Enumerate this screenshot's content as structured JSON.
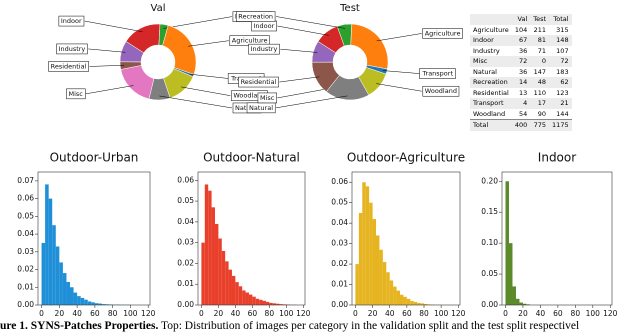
{
  "chart_data": [
    {
      "type": "pie",
      "title": "Val",
      "categories": [
        "Indoor",
        "Recreation",
        "Agriculture",
        "Transport",
        "Woodland",
        "Natural",
        "Misc",
        "Residential",
        "Industry"
      ],
      "values": [
        67,
        14,
        104,
        4,
        54,
        36,
        72,
        13,
        36
      ],
      "colors": [
        "#d62728",
        "#2ca02c",
        "#ff7f0e",
        "#1f77b4",
        "#bcbd22",
        "#7f7f7f",
        "#e377c2",
        "#8c564b",
        "#9467bd"
      ]
    },
    {
      "type": "pie",
      "title": "Test",
      "categories": [
        "Indoor",
        "Recreation",
        "Agriculture",
        "Transport",
        "Woodland",
        "Natural",
        "Misc",
        "Residential",
        "Industry"
      ],
      "values": [
        81,
        48,
        211,
        17,
        90,
        147,
        0,
        110,
        71
      ],
      "colors": [
        "#d62728",
        "#2ca02c",
        "#ff7f0e",
        "#1f77b4",
        "#bcbd22",
        "#7f7f7f",
        "#e377c2",
        "#8c564b",
        "#9467bd"
      ]
    },
    {
      "type": "histogram",
      "title": "Outdoor-Urban",
      "color": "#1f8fd8",
      "bins": [
        0,
        4,
        8,
        12,
        16,
        20,
        24,
        28,
        32,
        36,
        40,
        44,
        48,
        52,
        56,
        60,
        64,
        68,
        72,
        76,
        80,
        84,
        88,
        92,
        96,
        100,
        104,
        108,
        112,
        116,
        120
      ],
      "values": [
        0.035,
        0.068,
        0.06,
        0.045,
        0.033,
        0.024,
        0.018,
        0.013,
        0.01,
        0.007,
        0.005,
        0.004,
        0.003,
        0.002,
        0.0015,
        0.001,
        0.0008,
        0.0005,
        0.0004,
        0.0003,
        0.0002,
        0.0002,
        0.0001,
        0.0001,
        0.0001,
        0,
        0,
        0,
        0,
        0
      ],
      "xlim": [
        -4,
        122
      ],
      "xticks": [
        0,
        20,
        40,
        60,
        80,
        100,
        120
      ],
      "ylim": [
        0,
        0.075
      ],
      "yticks": [
        {
          "value": 0,
          "label": "0.00"
        },
        0.01,
        0.02,
        0.03,
        0.04,
        0.05,
        0.06,
        0.07
      ]
    },
    {
      "type": "histogram",
      "title": "Outdoor-Natural",
      "color": "#e8402a",
      "bins": [
        0,
        4,
        8,
        12,
        16,
        20,
        24,
        28,
        32,
        36,
        40,
        44,
        48,
        52,
        56,
        60,
        64,
        68,
        72,
        76,
        80,
        84,
        88,
        92,
        96,
        100,
        104,
        108,
        112,
        116,
        120
      ],
      "values": [
        0.03,
        0.058,
        0.055,
        0.047,
        0.039,
        0.032,
        0.026,
        0.021,
        0.017,
        0.014,
        0.011,
        0.009,
        0.007,
        0.006,
        0.005,
        0.004,
        0.003,
        0.0025,
        0.002,
        0.0015,
        0.001,
        0.0008,
        0.0006,
        0.0004,
        0.0003,
        0.0002,
        0.0001,
        0.0001,
        0,
        0
      ],
      "xlim": [
        -4,
        122
      ],
      "xticks": [
        0,
        20,
        40,
        60,
        80,
        100,
        120
      ],
      "ylim": [
        0,
        0.064
      ],
      "yticks": [
        {
          "value": 0,
          "label": "0.00"
        },
        0.01,
        0.02,
        0.03,
        0.04,
        0.05,
        0.06
      ]
    },
    {
      "type": "histogram",
      "title": "Outdoor-Agriculture",
      "color": "#e6b420",
      "bins": [
        0,
        4,
        8,
        12,
        16,
        20,
        24,
        28,
        32,
        36,
        40,
        44,
        48,
        52,
        56,
        60,
        64,
        68,
        72,
        76,
        80,
        84,
        88,
        92,
        96,
        100,
        104,
        108,
        112,
        116,
        120
      ],
      "values": [
        0.02,
        0.045,
        0.06,
        0.058,
        0.05,
        0.042,
        0.034,
        0.027,
        0.021,
        0.016,
        0.012,
        0.009,
        0.007,
        0.005,
        0.004,
        0.003,
        0.002,
        0.0015,
        0.001,
        0.0008,
        0.0005,
        0.0003,
        0.0002,
        0.0001,
        0.0001,
        0,
        0,
        0,
        0,
        0
      ],
      "xlim": [
        -4,
        122
      ],
      "xticks": [
        0,
        20,
        40,
        60,
        80,
        100,
        120
      ],
      "ylim": [
        0,
        0.065
      ],
      "yticks": [
        {
          "value": 0,
          "label": "0.00"
        },
        0.01,
        0.02,
        0.03,
        0.04,
        0.05,
        0.06
      ]
    },
    {
      "type": "histogram",
      "title": "Indoor",
      "color": "#5a8a2a",
      "bins": [
        0,
        4,
        8,
        12,
        16,
        20,
        24,
        28,
        32,
        36,
        40,
        44,
        48,
        52,
        56,
        60,
        64,
        68,
        72,
        76,
        80,
        84,
        88,
        92,
        96,
        100,
        104,
        108,
        112,
        116,
        120
      ],
      "values": [
        0.2,
        0.1,
        0.03,
        0.01,
        0.004,
        0.002,
        0.001,
        0,
        0,
        0,
        0,
        0,
        0,
        0,
        0,
        0,
        0,
        0,
        0,
        0,
        0,
        0,
        0,
        0,
        0,
        0,
        0,
        0,
        0,
        0
      ],
      "xlim": [
        -4,
        122
      ],
      "xticks": [
        0,
        20,
        40,
        60,
        80,
        100,
        120
      ],
      "ylim": [
        0,
        0.215
      ],
      "yticks": [
        {
          "value": 0,
          "label": "0.00"
        },
        0.05,
        {
          "value": 0.1,
          "label": "0.10"
        },
        0.15,
        {
          "value": 0.2,
          "label": "0.20"
        }
      ]
    }
  ],
  "table": {
    "header": [
      "Val",
      "Test",
      "Total"
    ],
    "rows": [
      [
        "Agriculture",
        "104",
        "211",
        "315"
      ],
      [
        "Indoor",
        "67",
        "81",
        "148"
      ],
      [
        "Industry",
        "36",
        "71",
        "107"
      ],
      [
        "Misc",
        "72",
        "0",
        "72"
      ],
      [
        "Natural",
        "36",
        "147",
        "183"
      ],
      [
        "Recreation",
        "14",
        "48",
        "62"
      ],
      [
        "Residential",
        "13",
        "110",
        "123"
      ],
      [
        "Transport",
        "4",
        "17",
        "21"
      ],
      [
        "Woodland",
        "54",
        "90",
        "144"
      ],
      [
        "Total",
        "400",
        "775",
        "1175"
      ]
    ]
  },
  "caption": {
    "lead": "ure 1.  SYNS-Patches Properties.",
    "text": "Top: Distribution of images per category in the validation split and the test split respectivel"
  }
}
